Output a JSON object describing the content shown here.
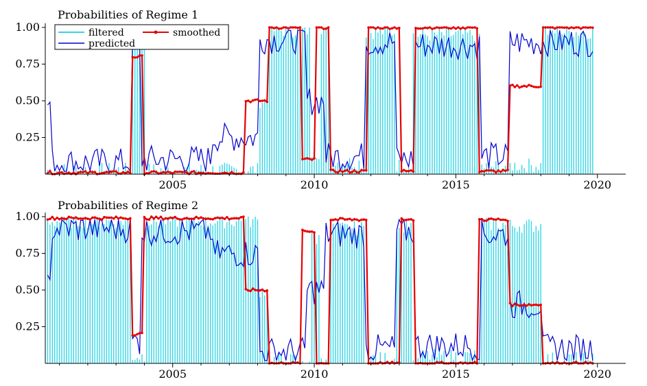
{
  "chart_data": [
    {
      "type": "bar+line",
      "title": "Probabilities of Regime 1",
      "x_range": [
        2000.5,
        2021.0
      ],
      "ylim": [
        0,
        1
      ],
      "y_ticks": [
        0.25,
        0.5,
        0.75,
        1.0
      ],
      "y_tick_labels": [
        "0.25",
        "0.50",
        "0.75",
        "1.00"
      ],
      "x_ticks": [
        2005,
        2010,
        2015,
        2020
      ],
      "x_tick_labels": [
        "2005",
        "2010",
        "2015",
        "2020"
      ],
      "legend": {
        "placement": "top-left",
        "entries": [
          {
            "label": "filtered",
            "color": "#33d6e6"
          },
          {
            "label": "predicted",
            "color": "#0000cc"
          },
          {
            "label": "smoothed",
            "color": "#e60000"
          }
        ]
      },
      "series": [
        {
          "name": "filtered",
          "style": "bars",
          "color": "#33d6e6",
          "start": 2000.583,
          "step": 0.08333,
          "segments": [
            [
              0,
              36,
              0.03
            ],
            [
              36,
              42,
              0.95
            ],
            [
              42,
              90,
              0.03
            ],
            [
              90,
              94,
              0.5
            ],
            [
              94,
              112,
              0.98
            ],
            [
              112,
              116,
              0.15
            ],
            [
              116,
              120,
              0.95
            ],
            [
              120,
              135,
              0.08
            ],
            [
              135,
              148,
              0.97
            ],
            [
              148,
              155,
              0.06
            ],
            [
              155,
              184,
              0.95
            ],
            [
              184,
              194,
              0.05
            ],
            [
              194,
              210,
              0.06
            ],
            [
              210,
              232,
              0.97
            ]
          ]
        },
        {
          "name": "predicted",
          "style": "line",
          "color": "#0000cc",
          "start": 2000.583,
          "step": 0.08333,
          "segments": [
            [
              0,
              2,
              0.48
            ],
            [
              2,
              36,
              0.08
            ],
            [
              36,
              40,
              0.85
            ],
            [
              40,
              70,
              0.1
            ],
            [
              70,
              90,
              0.25
            ],
            [
              90,
              110,
              0.92
            ],
            [
              110,
              118,
              0.5
            ],
            [
              118,
              135,
              0.12
            ],
            [
              135,
              148,
              0.9
            ],
            [
              148,
              156,
              0.1
            ],
            [
              156,
              184,
              0.88
            ],
            [
              184,
              196,
              0.12
            ],
            [
              196,
              232,
              0.9
            ]
          ]
        },
        {
          "name": "smoothed",
          "style": "line+markers",
          "color": "#e60000",
          "start": 2000.583,
          "step": 0.08333,
          "segments": [
            [
              0,
              36,
              0.01
            ],
            [
              36,
              41,
              0.8
            ],
            [
              41,
              84,
              0.01
            ],
            [
              84,
              94,
              0.5
            ],
            [
              94,
              108,
              1.0
            ],
            [
              108,
              114,
              0.1
            ],
            [
              114,
              120,
              1.0
            ],
            [
              120,
              136,
              0.02
            ],
            [
              136,
              150,
              1.0
            ],
            [
              150,
              156,
              0.02
            ],
            [
              156,
              183,
              1.0
            ],
            [
              183,
              196,
              0.02
            ],
            [
              196,
              210,
              0.6
            ],
            [
              210,
              232,
              1.0
            ]
          ]
        }
      ]
    },
    {
      "type": "bar+line",
      "title": "Probabilities of Regime 2",
      "x_range": [
        2000.5,
        2021.0
      ],
      "ylim": [
        0,
        1
      ],
      "y_ticks": [
        0.25,
        0.5,
        0.75,
        1.0
      ],
      "y_tick_labels": [
        "0.25",
        "0.50",
        "0.75",
        "1.00"
      ],
      "x_ticks": [
        2005,
        2010,
        2015,
        2020
      ],
      "x_tick_labels": [
        "2005",
        "2010",
        "2015",
        "2020"
      ],
      "series": [
        {
          "name": "filtered",
          "style": "bars",
          "color": "#33d6e6",
          "start": 2000.583,
          "step": 0.08333,
          "segments": [
            [
              0,
              36,
              0.97
            ],
            [
              36,
              42,
              0.05
            ],
            [
              42,
              90,
              0.97
            ],
            [
              90,
              94,
              0.5
            ],
            [
              94,
              112,
              0.02
            ],
            [
              112,
              116,
              0.85
            ],
            [
              116,
              120,
              0.05
            ],
            [
              120,
              135,
              0.92
            ],
            [
              135,
              148,
              0.03
            ],
            [
              148,
              155,
              0.94
            ],
            [
              155,
              184,
              0.05
            ],
            [
              184,
              194,
              0.95
            ],
            [
              194,
              210,
              0.94
            ],
            [
              210,
              232,
              0.03
            ]
          ]
        },
        {
          "name": "predicted",
          "style": "line",
          "color": "#0000cc",
          "start": 2000.583,
          "step": 0.08333,
          "segments": [
            [
              0,
              2,
              0.52
            ],
            [
              2,
              36,
              0.92
            ],
            [
              36,
              40,
              0.15
            ],
            [
              40,
              70,
              0.9
            ],
            [
              70,
              90,
              0.75
            ],
            [
              90,
              110,
              0.08
            ],
            [
              110,
              118,
              0.5
            ],
            [
              118,
              135,
              0.88
            ],
            [
              135,
              148,
              0.1
            ],
            [
              148,
              156,
              0.9
            ],
            [
              156,
              184,
              0.12
            ],
            [
              184,
              196,
              0.88
            ],
            [
              196,
              210,
              0.4
            ],
            [
              210,
              232,
              0.1
            ]
          ]
        },
        {
          "name": "smoothed",
          "style": "line+markers",
          "color": "#e60000",
          "start": 2000.583,
          "step": 0.08333,
          "segments": [
            [
              0,
              36,
              0.99
            ],
            [
              36,
              41,
              0.2
            ],
            [
              41,
              84,
              0.99
            ],
            [
              84,
              94,
              0.5
            ],
            [
              94,
              108,
              0.0
            ],
            [
              108,
              114,
              0.9
            ],
            [
              114,
              120,
              0.0
            ],
            [
              120,
              136,
              0.98
            ],
            [
              136,
              150,
              0.0
            ],
            [
              150,
              156,
              0.98
            ],
            [
              156,
              183,
              0.0
            ],
            [
              183,
              196,
              0.98
            ],
            [
              196,
              210,
              0.4
            ],
            [
              210,
              232,
              0.0
            ]
          ]
        }
      ]
    }
  ]
}
